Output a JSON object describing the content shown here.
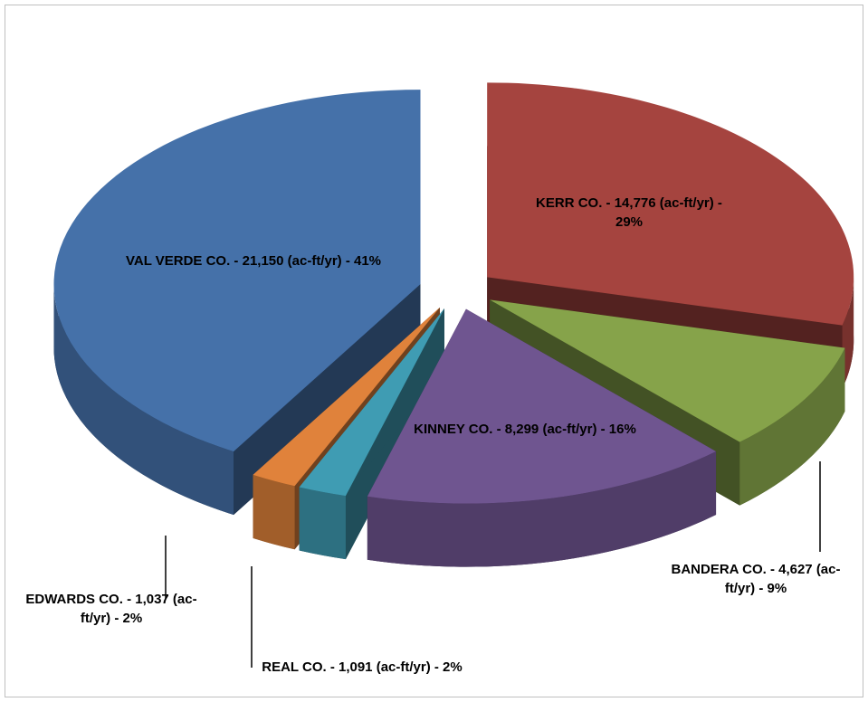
{
  "chart_data": {
    "type": "pie3d",
    "values": [
      14776,
      4627,
      8299,
      1091,
      1037,
      21150
    ],
    "value_labels": [
      "KERR CO. - 14,776 (ac-ft/yr) - 29%",
      "BANDERA CO. - 4,627 (ac-ft/yr) - 9%",
      "KINNEY CO. -  8,299 (ac-ft/yr) - 16%",
      "REAL CO. - 1,091 (ac-ft/yr) - 2%",
      "EDWARDS CO. - 1,037 (ac-ft/yr) - 2%",
      "VAL VERDE CO. - 21,150 (ac-ft/yr) - 41%"
    ],
    "colors": [
      "#a5443f",
      "#86a34a",
      "#6f5590",
      "#3f9cb3",
      "#e0823b",
      "#4571a9"
    ]
  }
}
